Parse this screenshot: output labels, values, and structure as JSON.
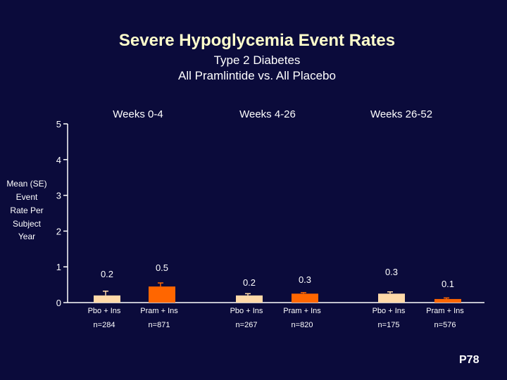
{
  "title": "Severe Hypoglycemia Event Rates",
  "subtitle": [
    "Type 2 Diabetes",
    "All Pramlintide vs. All Placebo"
  ],
  "page_number": "P78",
  "chart_data": {
    "type": "bar",
    "title": "Severe Hypoglycemia Event Rates",
    "ylabel": [
      "Mean (SE)",
      "Event",
      "Rate Per",
      "Subject",
      "Year"
    ],
    "ylim": [
      0,
      5
    ],
    "yticks": [
      0,
      1,
      2,
      3,
      4,
      5
    ],
    "grid": false,
    "groups": [
      "Weeks 0-4",
      "Weeks 4-26",
      "Weeks 26-52"
    ],
    "categories": [
      [
        "Pbo + Ins",
        "n=284"
      ],
      [
        "Pram + Ins",
        "n=871"
      ],
      [
        "Pbo + Ins",
        "n=267"
      ],
      [
        "Pram + Ins",
        "n=820"
      ],
      [
        "Pbo + Ins",
        "n=175"
      ],
      [
        "Pram + Ins",
        "n=576"
      ]
    ],
    "values": [
      0.2,
      0.45,
      0.2,
      0.25,
      0.25,
      0.1
    ],
    "errors": [
      0.12,
      0.1,
      0.05,
      0.03,
      0.05,
      0.03
    ],
    "value_labels": [
      "0.2",
      "0.5",
      "0.2",
      "0.3",
      "0.3",
      "0.1"
    ],
    "bar_colors": [
      "#ffd9a8",
      "#ff6600",
      "#ffd9a8",
      "#ff6600",
      "#ffd9a8",
      "#ff6600"
    ]
  }
}
